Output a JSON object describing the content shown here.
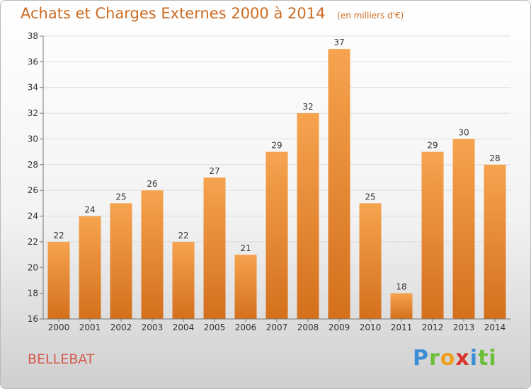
{
  "header": {
    "title": "Achats et Charges Externes 2000 à 2014",
    "unit": "(en milliers d'€)"
  },
  "footer": {
    "commune": "BELLEBAT",
    "logo_letters": [
      "P",
      "r",
      "o",
      "x",
      "i",
      "ti"
    ]
  },
  "chart_data": {
    "type": "bar",
    "title": "Achats et Charges Externes 2000 à 2014",
    "subtitle": "(en milliers d'€)",
    "xlabel": "",
    "ylabel": "",
    "categories": [
      "2000",
      "2001",
      "2002",
      "2003",
      "2004",
      "2005",
      "2006",
      "2007",
      "2008",
      "2009",
      "2010",
      "2011",
      "2012",
      "2013",
      "2014"
    ],
    "values": [
      22,
      24,
      25,
      26,
      22,
      27,
      21,
      29,
      32,
      37,
      25,
      18,
      29,
      30,
      28
    ],
    "ylim": [
      16,
      38
    ],
    "yticks": [
      16,
      18,
      20,
      22,
      24,
      26,
      28,
      30,
      32,
      34,
      36,
      38
    ],
    "grid": true,
    "legend": "none",
    "colors": {
      "bar_top": "#f6a34f",
      "bar_bottom": "#d4701c",
      "grid": "#dddddd"
    }
  }
}
